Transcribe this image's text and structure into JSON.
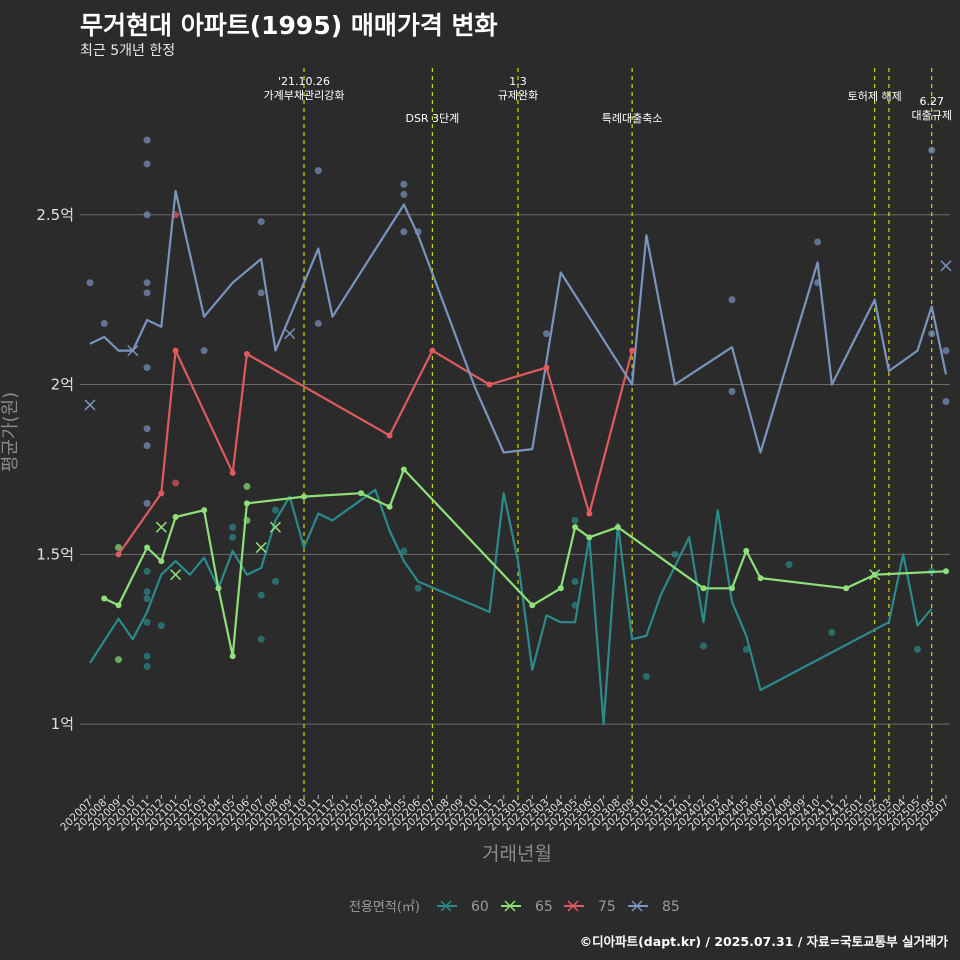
{
  "header": {
    "title": "무거현대 아파트(1995) 매매가격 변화",
    "subtitle": "최근 5개년 한정"
  },
  "caption": "©디아파트(dapt.kr) / 2025.07.31 / 자료=국토교통부 실거래가",
  "colors": {
    "60": "#2b8a8a",
    "65": "#8fe07a",
    "75": "#e05a5e",
    "85": "#7a94be",
    "event": "#d7d700",
    "grid": "#6a6a6a"
  },
  "chart_data": {
    "type": "line",
    "xlabel": "거래년월",
    "ylabel": "평균가(원)",
    "ylim": [
      0.8,
      2.95
    ],
    "y_ticks": [
      {
        "v": 1.0,
        "label": "1억"
      },
      {
        "v": 1.5,
        "label": "1.5억"
      },
      {
        "v": 2.0,
        "label": "2억"
      },
      {
        "v": 2.5,
        "label": "2.5억"
      }
    ],
    "categories": [
      "202007",
      "202008",
      "202009",
      "202010",
      "202011",
      "202012",
      "202101",
      "202102",
      "202103",
      "202104",
      "202105",
      "202106",
      "202107",
      "202108",
      "202109",
      "202110",
      "202111",
      "202112",
      "202201",
      "202202",
      "202203",
      "202204",
      "202205",
      "202206",
      "202207",
      "202208",
      "202209",
      "202210",
      "202211",
      "202212",
      "202301",
      "202302",
      "202303",
      "202304",
      "202305",
      "202306",
      "202307",
      "202308",
      "202309",
      "202310",
      "202311",
      "202312",
      "202401",
      "202402",
      "202403",
      "202404",
      "202405",
      "202406",
      "202407",
      "202408",
      "202409",
      "202410",
      "202411",
      "202412",
      "202501",
      "202502",
      "202503",
      "202504",
      "202505",
      "202506",
      "202507"
    ],
    "legend_title": "전용면적(㎡)",
    "events": [
      {
        "x": "202110",
        "label": "'21.10.26\n가계부채관리강화",
        "row": 0
      },
      {
        "x": "202207",
        "label": "DSR 3단계",
        "row": 1
      },
      {
        "x": "202301",
        "label": "1.3\n규제완화",
        "row": 0
      },
      {
        "x": "202309",
        "label": "특례대출축소",
        "row": 1
      },
      {
        "x": "202502",
        "label": "토허제 해제",
        "row": 2
      },
      {
        "x": "202503",
        "label": "",
        "row": 2
      },
      {
        "x": "202506",
        "label": "6.27\n대출규제",
        "row": 3
      }
    ],
    "series": [
      {
        "name": "60",
        "points": [
          [
            "202007",
            1.18
          ],
          [
            "202009",
            1.31
          ],
          [
            "202010",
            1.25
          ],
          [
            "202011",
            1.33
          ],
          [
            "202012",
            1.44
          ],
          [
            "202101",
            1.48
          ],
          [
            "202102",
            1.44
          ],
          [
            "202103",
            1.49
          ],
          [
            "202104",
            1.4
          ],
          [
            "202105",
            1.51
          ],
          [
            "202106",
            1.44
          ],
          [
            "202107",
            1.46
          ],
          [
            "202108",
            1.6
          ],
          [
            "202109",
            1.67
          ],
          [
            "202110",
            1.52
          ],
          [
            "202111",
            1.62
          ],
          [
            "202112",
            1.6
          ],
          [
            "202201",
            1.63
          ],
          [
            "202203",
            1.69
          ],
          [
            "202204",
            1.57
          ],
          [
            "202205",
            1.48
          ],
          [
            "202206",
            1.42
          ],
          [
            "202211",
            1.33
          ],
          [
            "202212",
            1.68
          ],
          [
            "202301",
            1.48
          ],
          [
            "202302",
            1.16
          ],
          [
            "202303",
            1.32
          ],
          [
            "202304",
            1.3
          ],
          [
            "202305",
            1.3
          ],
          [
            "202306",
            1.55
          ],
          [
            "202307",
            1.0
          ],
          [
            "202308",
            1.59
          ],
          [
            "202309",
            1.25
          ],
          [
            "202310",
            1.26
          ],
          [
            "202311",
            1.38
          ],
          [
            "202401",
            1.55
          ],
          [
            "202402",
            1.3
          ],
          [
            "202403",
            1.63
          ],
          [
            "202404",
            1.36
          ],
          [
            "202405",
            1.26
          ],
          [
            "202406",
            1.1
          ],
          [
            "202503",
            1.3
          ],
          [
            "202504",
            1.5
          ],
          [
            "202505",
            1.29
          ],
          [
            "202506",
            1.34
          ]
        ]
      },
      {
        "name": "65",
        "points": [
          [
            "202008",
            1.37
          ],
          [
            "202009",
            1.35
          ],
          [
            "202011",
            1.52
          ],
          [
            "202012",
            1.48
          ],
          [
            "202101",
            1.61
          ],
          [
            "202103",
            1.63
          ],
          [
            "202104",
            1.4
          ],
          [
            "202105",
            1.2
          ],
          [
            "202106",
            1.65
          ],
          [
            "202110",
            1.67
          ],
          [
            "202202",
            1.68
          ],
          [
            "202204",
            1.64
          ],
          [
            "202205",
            1.75
          ],
          [
            "202302",
            1.35
          ],
          [
            "202304",
            1.4
          ],
          [
            "202305",
            1.58
          ],
          [
            "202306",
            1.55
          ],
          [
            "202308",
            1.58
          ],
          [
            "202402",
            1.4
          ],
          [
            "202404",
            1.4
          ],
          [
            "202405",
            1.51
          ],
          [
            "202406",
            1.43
          ],
          [
            "202412",
            1.4
          ],
          [
            "202502",
            1.44
          ],
          [
            "202507",
            1.45
          ]
        ]
      },
      {
        "name": "75",
        "points": [
          [
            "202009",
            1.5
          ],
          [
            "202012",
            1.68
          ],
          [
            "202101",
            2.1
          ],
          [
            "202105",
            1.74
          ],
          [
            "202106",
            2.09
          ],
          [
            "202204",
            1.85
          ],
          [
            "202207",
            2.1
          ],
          [
            "202211",
            2.0
          ],
          [
            "202303",
            2.05
          ],
          [
            "202306",
            1.62
          ],
          [
            "202309",
            2.1
          ]
        ]
      },
      {
        "name": "85",
        "points": [
          [
            "202007",
            2.12
          ],
          [
            "202008",
            2.14
          ],
          [
            "202009",
            2.1
          ],
          [
            "202010",
            2.1
          ],
          [
            "202011",
            2.19
          ],
          [
            "202012",
            2.17
          ],
          [
            "202101",
            2.57
          ],
          [
            "202103",
            2.2
          ],
          [
            "202105",
            2.3
          ],
          [
            "202107",
            2.37
          ],
          [
            "202108",
            2.1
          ],
          [
            "202111",
            2.4
          ],
          [
            "202112",
            2.2
          ],
          [
            "202205",
            2.53
          ],
          [
            "202206",
            2.44
          ],
          [
            "202210",
            1.99
          ],
          [
            "202212",
            1.8
          ],
          [
            "202302",
            1.81
          ],
          [
            "202304",
            2.33
          ],
          [
            "202309",
            2.0
          ],
          [
            "202310",
            2.44
          ],
          [
            "202312",
            2.0
          ],
          [
            "202404",
            2.11
          ],
          [
            "202406",
            1.8
          ],
          [
            "202410",
            2.36
          ],
          [
            "202411",
            2.0
          ],
          [
            "202502",
            2.25
          ],
          [
            "202503",
            2.04
          ],
          [
            "202505",
            2.1
          ],
          [
            "202506",
            2.23
          ],
          [
            "202507",
            2.03
          ]
        ]
      }
    ],
    "scatter": [
      {
        "s": "60",
        "x": "202011",
        "y": 1.39
      },
      {
        "s": "60",
        "x": "202011",
        "y": 1.37
      },
      {
        "s": "60",
        "x": "202011",
        "y": 1.3
      },
      {
        "s": "60",
        "x": "202011",
        "y": 1.2
      },
      {
        "s": "60",
        "x": "202011",
        "y": 1.17
      },
      {
        "s": "60",
        "x": "202011",
        "y": 1.45
      },
      {
        "s": "60",
        "x": "202012",
        "y": 1.29
      },
      {
        "s": "60",
        "x": "202105",
        "y": 1.58
      },
      {
        "s": "60",
        "x": "202105",
        "y": 1.55
      },
      {
        "s": "60",
        "x": "202107",
        "y": 1.38
      },
      {
        "s": "60",
        "x": "202107",
        "y": 1.25
      },
      {
        "s": "60",
        "x": "202108",
        "y": 1.42
      },
      {
        "s": "60",
        "x": "202108",
        "y": 1.63
      },
      {
        "s": "60",
        "x": "202305",
        "y": 1.6
      },
      {
        "s": "60",
        "x": "202305",
        "y": 1.42
      },
      {
        "s": "60",
        "x": "202305",
        "y": 1.35
      },
      {
        "s": "60",
        "x": "202310",
        "y": 1.14
      },
      {
        "s": "60",
        "x": "202312",
        "y": 1.5
      },
      {
        "s": "60",
        "x": "202402",
        "y": 1.23
      },
      {
        "s": "60",
        "x": "202405",
        "y": 1.22
      },
      {
        "s": "60",
        "x": "202408",
        "y": 1.47
      },
      {
        "s": "60",
        "x": "202411",
        "y": 1.27
      },
      {
        "s": "60",
        "x": "202505",
        "y": 1.22
      },
      {
        "s": "60",
        "x": "202506",
        "y": 1.45
      },
      {
        "s": "60",
        "x": "202206",
        "y": 1.4
      },
      {
        "s": "60",
        "x": "202205",
        "y": 1.51
      },
      {
        "s": "65",
        "x": "202009",
        "y": 1.19
      },
      {
        "s": "65",
        "x": "202009",
        "y": 1.52
      },
      {
        "s": "65",
        "x": "202106",
        "y": 1.7
      },
      {
        "s": "65",
        "x": "202106",
        "y": 1.6
      },
      {
        "s": "75",
        "x": "202101",
        "y": 1.71
      },
      {
        "s": "75",
        "x": "202101",
        "y": 2.5
      },
      {
        "s": "85",
        "x": "202007",
        "y": 2.3
      },
      {
        "s": "85",
        "x": "202008",
        "y": 2.18
      },
      {
        "s": "85",
        "x": "202011",
        "y": 2.72
      },
      {
        "s": "85",
        "x": "202011",
        "y": 2.65
      },
      {
        "s": "85",
        "x": "202011",
        "y": 2.5
      },
      {
        "s": "85",
        "x": "202011",
        "y": 2.3
      },
      {
        "s": "85",
        "x": "202011",
        "y": 2.27
      },
      {
        "s": "85",
        "x": "202011",
        "y": 2.05
      },
      {
        "s": "85",
        "x": "202011",
        "y": 1.87
      },
      {
        "s": "85",
        "x": "202011",
        "y": 1.82
      },
      {
        "s": "85",
        "x": "202103",
        "y": 2.1
      },
      {
        "s": "85",
        "x": "202107",
        "y": 2.48
      },
      {
        "s": "85",
        "x": "202107",
        "y": 2.27
      },
      {
        "s": "85",
        "x": "202111",
        "y": 2.63
      },
      {
        "s": "85",
        "x": "202111",
        "y": 2.18
      },
      {
        "s": "85",
        "x": "202205",
        "y": 2.59
      },
      {
        "s": "85",
        "x": "202205",
        "y": 2.56
      },
      {
        "s": "85",
        "x": "202205",
        "y": 2.45
      },
      {
        "s": "85",
        "x": "202206",
        "y": 2.45
      },
      {
        "s": "85",
        "x": "202303",
        "y": 2.15
      },
      {
        "s": "85",
        "x": "202404",
        "y": 2.25
      },
      {
        "s": "85",
        "x": "202404",
        "y": 1.98
      },
      {
        "s": "85",
        "x": "202410",
        "y": 2.42
      },
      {
        "s": "85",
        "x": "202410",
        "y": 2.3
      },
      {
        "s": "85",
        "x": "202506",
        "y": 2.69
      },
      {
        "s": "85",
        "x": "202506",
        "y": 2.15
      },
      {
        "s": "85",
        "x": "202507",
        "y": 2.1
      },
      {
        "s": "85",
        "x": "202507",
        "y": 1.95
      },
      {
        "s": "85",
        "x": "202011",
        "y": 1.65
      }
    ],
    "crosses": [
      {
        "s": "85",
        "x": "202007",
        "y": 1.94
      },
      {
        "s": "85",
        "x": "202010",
        "y": 2.1
      },
      {
        "s": "85",
        "x": "202109",
        "y": 2.15
      },
      {
        "s": "85",
        "x": "202507",
        "y": 2.35
      },
      {
        "s": "65",
        "x": "202012",
        "y": 1.58
      },
      {
        "s": "65",
        "x": "202101",
        "y": 1.44
      },
      {
        "s": "65",
        "x": "202107",
        "y": 1.52
      },
      {
        "s": "65",
        "x": "202108",
        "y": 1.58
      },
      {
        "s": "65",
        "x": "202502",
        "y": 1.44
      }
    ]
  }
}
